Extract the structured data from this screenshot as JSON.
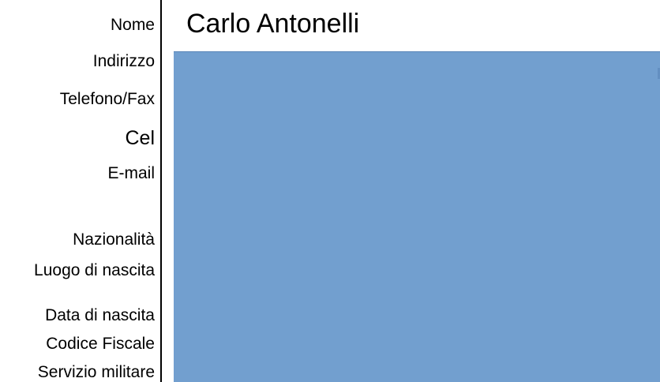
{
  "labels": {
    "nome": "Nome",
    "indirizzo": "Indirizzo",
    "telefono_fax": "Telefono/Fax",
    "cel": "Cel",
    "email": "E-mail",
    "nazionalita": "Nazionalità",
    "luogo_di_nascita": "Luogo di nascita",
    "data_di_nascita": "Data di nascita",
    "codice_fiscale": "Codice Fiscale",
    "servizio_militare": "Servizio militare"
  },
  "values": {
    "nome": "Carlo Antonelli"
  },
  "colors": {
    "info_box_fill": "#729fcf",
    "text": "#000000",
    "divider": "#000000"
  }
}
